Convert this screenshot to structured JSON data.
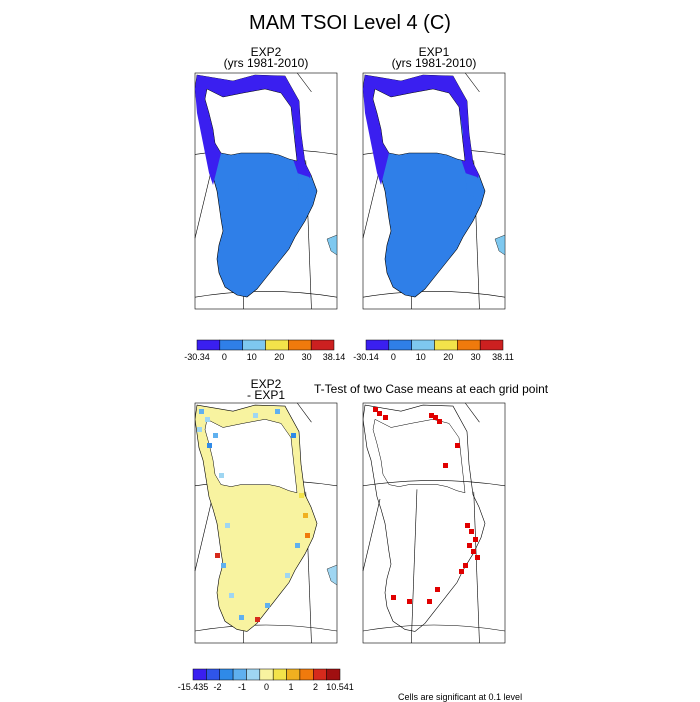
{
  "figure": {
    "title": "MAM TSOI Level 4 (C)",
    "ttest_title": "T-Test of two Case means at each grid point",
    "footnote": "Cells are significant at 0.1 level"
  },
  "panels": [
    {
      "id": "exp2",
      "title_line1": "EXP2",
      "title_line2": "(yrs 1981-2010)"
    },
    {
      "id": "exp1",
      "title_line1": "EXP1",
      "title_line2": "(yrs 1981-2010)"
    },
    {
      "id": "diff",
      "title_line1": "EXP2",
      "title_line2": "- EXP1"
    },
    {
      "id": "ttest",
      "title_line1": "",
      "title_line2": ""
    }
  ],
  "colors": {
    "abs_scale": [
      "#3a1ff0",
      "#2f7fe8",
      "#7ec8ef",
      "#f3e34a",
      "#f07a0c",
      "#cc2020"
    ],
    "diff_scale": [
      "#3a1ff0",
      "#2f55ea",
      "#2f8ae8",
      "#5fb0ef",
      "#9fd6f2",
      "#f8f3a0",
      "#f3e34a",
      "#f0b020",
      "#f07a0c",
      "#d62a1c",
      "#a00f10"
    ],
    "significant": "#e00000",
    "land_outline": "#000000"
  },
  "chart_data": [
    {
      "type": "heatmap",
      "panel": "EXP2 (yrs 1981-2010)",
      "colorbar": {
        "labels": [
          "-30.34",
          "0",
          "10",
          "20",
          "30",
          "38.14"
        ],
        "min": -30.34,
        "max": 38.14
      }
    },
    {
      "type": "heatmap",
      "panel": "EXP1 (yrs 1981-2010)",
      "colorbar": {
        "labels": [
          "-30.14",
          "0",
          "10",
          "20",
          "30",
          "38.11"
        ],
        "min": -30.14,
        "max": 38.11
      }
    },
    {
      "type": "heatmap",
      "panel": "EXP2 - EXP1",
      "colorbar": {
        "labels": [
          "-15.435",
          "-2",
          "-1",
          "0",
          "1",
          "2",
          "10.541"
        ],
        "min": -15.435,
        "max": 10.541
      }
    },
    {
      "type": "heatmap",
      "panel": "T-Test of two Case means at each grid point",
      "legend": "Cells are significant at 0.1 level"
    }
  ]
}
